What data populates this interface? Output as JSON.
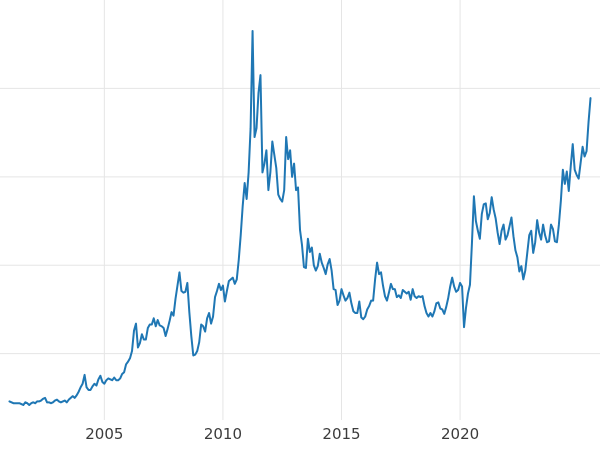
{
  "chart_data": {
    "type": "line",
    "title": "",
    "xlabel": "",
    "ylabel": "",
    "series_name": "price",
    "x_start": 2001.0,
    "x_step": 0.0833333,
    "x_range": [
      2000.6,
      2025.9
    ],
    "y_range": [
      2.5,
      50
    ],
    "grid": true,
    "legend": "none",
    "line_color": "#1f77b4",
    "grid_color": "#e5e5e5",
    "background_color": "#ffffff",
    "tick_label_color": "#3b3b3b",
    "xticks": [
      {
        "value": 2005,
        "label": "2005"
      },
      {
        "value": 2010,
        "label": "2010"
      },
      {
        "value": 2015,
        "label": "2015"
      },
      {
        "value": 2020,
        "label": "2020"
      }
    ],
    "yticks": [
      10,
      20,
      30,
      40
    ],
    "values": [
      4.6,
      4.5,
      4.4,
      4.4,
      4.4,
      4.4,
      4.3,
      4.2,
      4.5,
      4.4,
      4.2,
      4.4,
      4.5,
      4.4,
      4.6,
      4.6,
      4.7,
      4.9,
      5.0,
      4.5,
      4.5,
      4.4,
      4.5,
      4.7,
      4.8,
      4.6,
      4.5,
      4.6,
      4.7,
      4.5,
      4.8,
      5.0,
      5.2,
      5.0,
      5.3,
      5.7,
      6.2,
      6.6,
      7.6,
      6.2,
      5.9,
      5.9,
      6.3,
      6.6,
      6.4,
      7.1,
      7.5,
      6.8,
      6.6,
      7.0,
      7.2,
      7.1,
      7.0,
      7.3,
      7.0,
      7.0,
      7.2,
      7.7,
      7.9,
      8.8,
      9.1,
      9.5,
      10.3,
      12.6,
      13.4,
      10.7,
      11.2,
      12.2,
      11.6,
      11.6,
      12.9,
      13.3,
      13.3,
      14.0,
      13.1,
      13.8,
      13.2,
      13.1,
      12.9,
      12.0,
      12.8,
      13.7,
      14.7,
      14.3,
      16.2,
      17.7,
      19.2,
      17.1,
      16.9,
      17.0,
      18.0,
      14.7,
      12.0,
      9.8,
      9.9,
      10.3,
      11.3,
      13.3,
      13.1,
      12.5,
      14.0,
      14.6,
      13.4,
      14.2,
      16.4,
      17.1,
      17.9,
      17.2,
      17.7,
      15.9,
      17.1,
      18.2,
      18.4,
      18.6,
      17.9,
      18.4,
      20.6,
      23.4,
      26.7,
      29.3,
      27.5,
      30.5,
      35.5,
      46.5,
      34.5,
      35.5,
      39.5,
      41.5,
      30.5,
      31.5,
      33.0,
      28.5,
      30.5,
      34.0,
      32.5,
      31.0,
      28.0,
      27.5,
      27.2,
      28.5,
      34.5,
      32.0,
      33.0,
      30.0,
      31.5,
      28.5,
      28.8,
      24.0,
      22.3,
      19.8,
      19.7,
      23.0,
      21.5,
      22.0,
      20.0,
      19.4,
      19.9,
      21.3,
      20.3,
      19.7,
      19.0,
      20.1,
      20.7,
      19.4,
      17.3,
      17.2,
      15.5,
      16.0,
      17.3,
      16.6,
      16.0,
      16.3,
      16.9,
      15.7,
      14.8,
      14.6,
      14.6,
      15.9,
      14.1,
      13.9,
      14.2,
      15.0,
      15.4,
      16.0,
      16.0,
      18.4,
      20.3,
      19.0,
      19.2,
      17.7,
      16.5,
      16.0,
      16.9,
      17.9,
      17.3,
      17.3,
      16.4,
      16.6,
      16.3,
      17.2,
      17.0,
      16.8,
      17.0,
      16.1,
      17.3,
      16.5,
      16.3,
      16.5,
      16.4,
      16.5,
      15.4,
      14.6,
      14.2,
      14.6,
      14.2,
      14.8,
      15.7,
      15.8,
      15.1,
      15.0,
      14.5,
      15.3,
      16.3,
      17.6,
      18.6,
      17.6,
      17.0,
      17.2,
      18.0,
      17.6,
      13.0,
      15.2,
      16.8,
      17.8,
      22.5,
      27.8,
      25.0,
      23.9,
      23.0,
      25.8,
      26.9,
      27.0,
      25.2,
      25.9,
      27.7,
      26.3,
      25.3,
      23.7,
      22.4,
      23.9,
      24.6,
      22.9,
      23.4,
      24.4,
      25.4,
      23.3,
      21.7,
      20.9,
      19.3,
      19.9,
      18.4,
      19.4,
      21.4,
      23.4,
      23.9,
      21.4,
      22.6,
      25.1,
      23.7,
      22.9,
      24.6,
      23.4,
      22.6,
      22.7,
      24.6,
      24.1,
      22.7,
      22.6,
      24.6,
      27.3,
      30.8,
      29.2,
      30.6,
      28.4,
      31.2,
      33.7,
      30.8,
      30.2,
      29.8,
      31.6,
      33.4,
      32.3,
      32.9,
      36.2,
      38.9
    ]
  }
}
